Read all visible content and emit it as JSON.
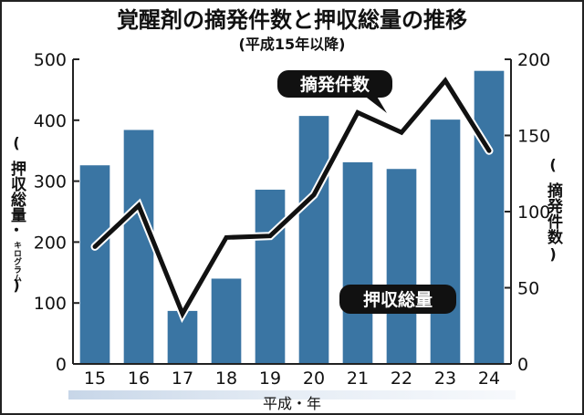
{
  "chart_data": {
    "type": "bar",
    "title": "覚醒剤の摘発件数と押収総量の推移",
    "subtitle": "(平成15年以降)",
    "xlabel": "平成・年",
    "categories": [
      "15",
      "16",
      "17",
      "18",
      "19",
      "20",
      "21",
      "22",
      "23",
      "24"
    ],
    "y_left": {
      "label": "(押収総量・キログラム)",
      "label_main": "押収総量",
      "label_unit": "キログラム",
      "ylim": [
        0,
        500
      ],
      "ticks": [
        "0",
        "100",
        "200",
        "300",
        "400",
        "500"
      ]
    },
    "y_right": {
      "label": "(摘発件数)",
      "label_main": "摘発件数",
      "ylim": [
        0,
        200
      ],
      "ticks": [
        "0",
        "50",
        "100",
        "150",
        "200"
      ]
    },
    "series": [
      {
        "name": "押収総量",
        "type": "bar",
        "axis": "left",
        "values": [
          326,
          384,
          87,
          140,
          286,
          407,
          331,
          320,
          401,
          481
        ]
      },
      {
        "name": "摘発件数",
        "type": "line",
        "axis": "right",
        "values": [
          77,
          104,
          33,
          83,
          84,
          111,
          165,
          152,
          186,
          140
        ]
      }
    ],
    "grid": false,
    "colors": {
      "bar": "#3a75a3",
      "line": "#111111",
      "axis": "#222222"
    }
  }
}
